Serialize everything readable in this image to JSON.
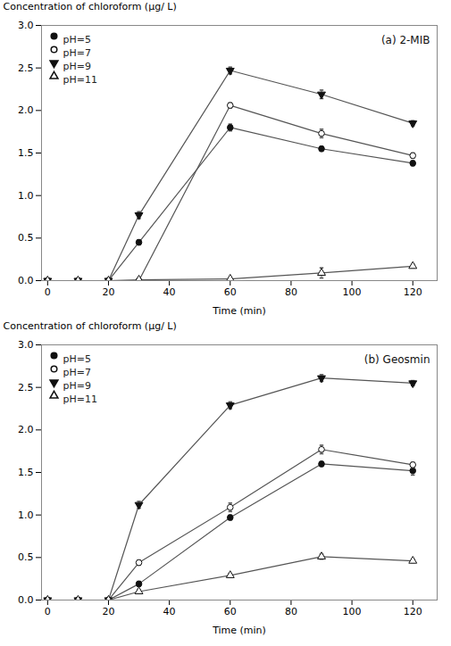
{
  "chart_data": [
    {
      "type": "line",
      "title": "(a) 2-MIB",
      "xlabel": "Time (min)",
      "ylabel": "Concentration of chloroform (μg/ L)",
      "x": [
        0,
        10,
        20,
        30,
        60,
        90,
        120
      ],
      "xlim": [
        -2,
        128
      ],
      "ylim": [
        0,
        3.0
      ],
      "xticks": [
        0,
        20,
        40,
        60,
        80,
        100,
        120
      ],
      "yticks": [
        {
          "value": 0.0,
          "label": "0.0"
        },
        0.5,
        {
          "value": 1.0,
          "label": "1.0"
        },
        1.5,
        {
          "value": 2.0,
          "label": "2.0"
        },
        2.5,
        {
          "value": 3.0,
          "label": "3.0"
        }
      ],
      "legend": "upper left",
      "color": "#555555",
      "series": [
        {
          "name": "pH=5",
          "marker": "circle",
          "color": "#111111",
          "values": [
            0.0,
            0.0,
            0.0,
            0.45,
            1.8,
            1.55,
            1.38
          ],
          "errors": [
            0,
            0,
            0,
            0.03,
            0.04,
            0.03,
            0.03
          ]
        },
        {
          "name": "pH=7",
          "marker": "circle-open",
          "color": "#111111",
          "values": [
            0.0,
            0.0,
            0.0,
            0.0,
            2.06,
            1.73,
            1.47
          ],
          "errors": [
            0,
            0,
            0,
            0,
            0.03,
            0.05,
            0.03
          ]
        },
        {
          "name": "pH=9",
          "marker": "triangle-down",
          "color": "#111111",
          "values": [
            0.0,
            0.0,
            0.0,
            0.77,
            2.47,
            2.19,
            1.85
          ],
          "errors": [
            0,
            0,
            0,
            0.04,
            0.04,
            0.05,
            0.03
          ]
        },
        {
          "name": "pH=11",
          "marker": "triangle-up-open",
          "color": "#111111",
          "values": [
            0.0,
            0.0,
            0.0,
            0.01,
            0.02,
            0.09,
            0.17
          ],
          "errors": [
            0,
            0,
            0,
            0,
            0.01,
            0.06,
            0.02
          ]
        }
      ]
    },
    {
      "type": "line",
      "title": "(b) Geosmin",
      "xlabel": "Time (min)",
      "ylabel": "Concentration of chloroform (μg/ L)",
      "x": [
        0,
        10,
        20,
        30,
        60,
        90,
        120
      ],
      "xlim": [
        -2,
        128
      ],
      "ylim": [
        0,
        3.0
      ],
      "xticks": [
        0,
        20,
        40,
        60,
        80,
        100,
        120
      ],
      "yticks": [
        {
          "value": 0.0,
          "label": "0.0"
        },
        0.5,
        {
          "value": 1.0,
          "label": "1.0"
        },
        1.5,
        {
          "value": 2.0,
          "label": "2.0"
        },
        2.5,
        {
          "value": 3.0,
          "label": "3.0"
        }
      ],
      "legend": "upper left",
      "color": "#555555",
      "series": [
        {
          "name": "pH=5",
          "marker": "circle",
          "color": "#111111",
          "values": [
            0.0,
            0.0,
            0.0,
            0.19,
            0.97,
            1.6,
            1.52
          ],
          "errors": [
            0,
            0,
            0,
            0.03,
            0.03,
            0.03,
            0.05
          ]
        },
        {
          "name": "pH=7",
          "marker": "circle-open",
          "color": "#111111",
          "values": [
            0.0,
            0.0,
            0.0,
            0.44,
            1.09,
            1.77,
            1.59
          ],
          "errors": [
            0,
            0,
            0,
            0.03,
            0.05,
            0.05,
            0.03
          ]
        },
        {
          "name": "pH=9",
          "marker": "triangle-down",
          "color": "#111111",
          "values": [
            0.0,
            0.0,
            0.0,
            1.12,
            2.29,
            2.61,
            2.55
          ],
          "errors": [
            0,
            0,
            0,
            0.04,
            0.04,
            0.04,
            0.03
          ]
        },
        {
          "name": "pH=11",
          "marker": "triangle-up-open",
          "color": "#111111",
          "values": [
            0.0,
            0.0,
            0.0,
            0.1,
            0.29,
            0.51,
            0.46
          ],
          "errors": [
            0,
            0,
            0,
            0.02,
            0.02,
            0.03,
            0.02
          ]
        }
      ]
    }
  ]
}
